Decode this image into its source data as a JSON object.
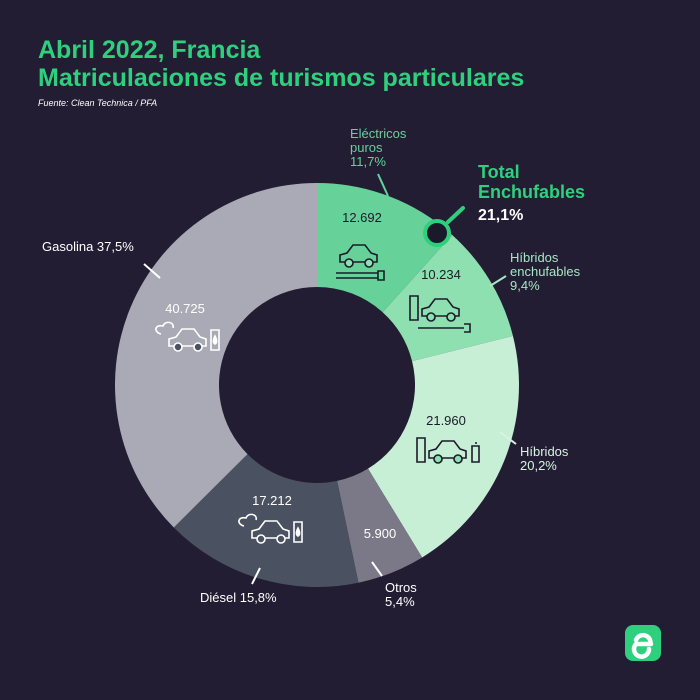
{
  "title_line1": "Abril 2022, Francia",
  "title_line2": "Matriculaciones de turismos particulares",
  "source": "Fuente: Clean Technica / PFA",
  "logo_letter": "e",
  "total": {
    "line1": "Total",
    "line2": "Enchufables",
    "value": "21,1%"
  },
  "chart_data": {
    "type": "pie",
    "donut": true,
    "slices": [
      {
        "id": "bev",
        "label_lines": [
          "Eléctricos",
          "puros"
        ],
        "percent_label": "11,7%",
        "value_label": "12.692",
        "value": 12692,
        "color": "#66d29a",
        "label_color": "#66d29a",
        "icon": "electric-car-icon"
      },
      {
        "id": "phev",
        "label_lines": [
          "Híbridos",
          "enchufables"
        ],
        "percent_label": "9,4%",
        "value_label": "10.234",
        "value": 10234,
        "color": "#8ee0b0",
        "label_color": "#a8e6c4",
        "icon": "plugin-hybrid-car-icon"
      },
      {
        "id": "hev",
        "label_lines": [
          "Híbridos"
        ],
        "percent_label": "20,2%",
        "value_label": "21.960",
        "value": 21960,
        "color": "#c7efd6",
        "label_color": "#d8f3e4",
        "icon": "hybrid-car-icon"
      },
      {
        "id": "otros",
        "label_lines": [
          "Otros"
        ],
        "percent_label": "5,4%",
        "value_label": "5.900",
        "value": 5900,
        "color": "#7b7888",
        "label_color": "#ffffff",
        "icon": ""
      },
      {
        "id": "diesel",
        "label_lines": [
          "Diésel"
        ],
        "percent_label": "15,8%",
        "value_label": "17.212",
        "value": 17212,
        "color": "#4a5160",
        "label_color": "#ffffff",
        "icon": "diesel-car-icon"
      },
      {
        "id": "gasolina",
        "label_lines": [
          "Gasolina"
        ],
        "percent_label": "37,5%",
        "value_label": "40.725",
        "value": 40725,
        "color": "#a9aab5",
        "label_color": "#ffffff",
        "icon": "gasoline-car-icon"
      }
    ],
    "highlight_color": "#2fd07d"
  }
}
